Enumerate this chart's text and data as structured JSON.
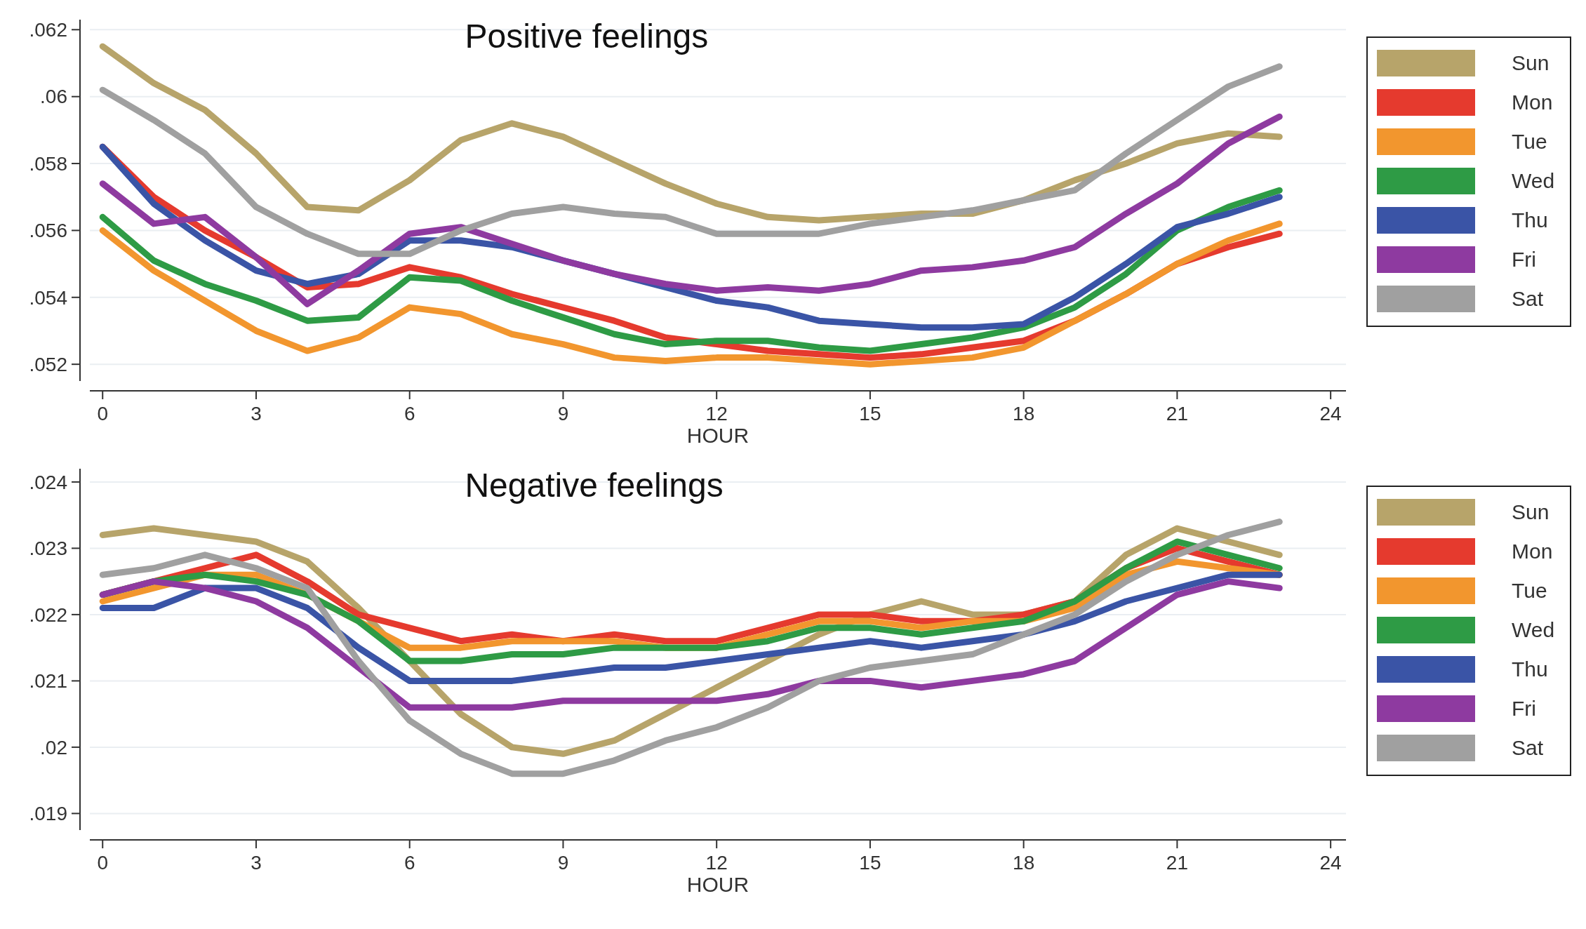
{
  "chart_data": [
    {
      "type": "line",
      "title": "Positive feelings",
      "xlabel": "HOUR",
      "x": [
        0,
        1,
        2,
        3,
        4,
        5,
        6,
        7,
        8,
        9,
        10,
        11,
        12,
        13,
        14,
        15,
        16,
        17,
        18,
        19,
        20,
        21,
        22,
        23
      ],
      "xlim": [
        -0.25,
        24.3
      ],
      "xticks": [
        0,
        3,
        6,
        9,
        12,
        15,
        18,
        21,
        24
      ],
      "ylim": [
        0.0515,
        0.0623
      ],
      "yticks": [
        {
          "value": 0.052,
          "label": ".052"
        },
        {
          "value": 0.054,
          "label": ".054"
        },
        {
          "value": 0.056,
          "label": ".056"
        },
        {
          "value": 0.058,
          "label": ".058"
        },
        {
          "value": 0.06,
          "label": ".06"
        },
        {
          "value": 0.062,
          "label": ".062"
        }
      ],
      "grid": "y",
      "legend": "right",
      "marker": "none",
      "line_style": "solid",
      "series": [
        {
          "name": "Sun",
          "color": "#b7a46a",
          "values": [
            0.0615,
            0.0604,
            0.0596,
            0.0583,
            0.0567,
            0.0566,
            0.0575,
            0.0587,
            0.0592,
            0.0588,
            0.0581,
            0.0574,
            0.0568,
            0.0564,
            0.0563,
            0.0564,
            0.0565,
            0.0565,
            0.0569,
            0.0575,
            0.058,
            0.0586,
            0.0589,
            0.0588
          ]
        },
        {
          "name": "Mon",
          "color": "#e53a2e",
          "values": [
            0.0585,
            0.057,
            0.056,
            0.0552,
            0.0543,
            0.0544,
            0.0549,
            0.0546,
            0.0541,
            0.0537,
            0.0533,
            0.0528,
            0.0526,
            0.0524,
            0.0523,
            0.0522,
            0.0523,
            0.0525,
            0.0527,
            0.0533,
            0.0541,
            0.055,
            0.0555,
            0.0559
          ]
        },
        {
          "name": "Tue",
          "color": "#f2962e",
          "values": [
            0.056,
            0.0548,
            0.0539,
            0.053,
            0.0524,
            0.0528,
            0.0537,
            0.0535,
            0.0529,
            0.0526,
            0.0522,
            0.0521,
            0.0522,
            0.0522,
            0.0521,
            0.052,
            0.0521,
            0.0522,
            0.0525,
            0.0533,
            0.0541,
            0.055,
            0.0557,
            0.0562
          ]
        },
        {
          "name": "Wed",
          "color": "#2e9b45",
          "values": [
            0.0564,
            0.0551,
            0.0544,
            0.0539,
            0.0533,
            0.0534,
            0.0546,
            0.0545,
            0.0539,
            0.0534,
            0.0529,
            0.0526,
            0.0527,
            0.0527,
            0.0525,
            0.0524,
            0.0526,
            0.0528,
            0.0531,
            0.0537,
            0.0547,
            0.056,
            0.0567,
            0.0572
          ]
        },
        {
          "name": "Thu",
          "color": "#3a54a6",
          "values": [
            0.0585,
            0.0568,
            0.0557,
            0.0548,
            0.0544,
            0.0547,
            0.0557,
            0.0557,
            0.0555,
            0.0551,
            0.0547,
            0.0543,
            0.0539,
            0.0537,
            0.0533,
            0.0532,
            0.0531,
            0.0531,
            0.0532,
            0.054,
            0.055,
            0.0561,
            0.0565,
            0.057
          ]
        },
        {
          "name": "Fri",
          "color": "#8e3aa0",
          "values": [
            0.0574,
            0.0562,
            0.0564,
            0.0552,
            0.0538,
            0.0548,
            0.0559,
            0.0561,
            0.0556,
            0.0551,
            0.0547,
            0.0544,
            0.0542,
            0.0543,
            0.0542,
            0.0544,
            0.0548,
            0.0549,
            0.0551,
            0.0555,
            0.0565,
            0.0574,
            0.0586,
            0.0594
          ]
        },
        {
          "name": "Sat",
          "color": "#a0a0a0",
          "values": [
            0.0602,
            0.0593,
            0.0583,
            0.0567,
            0.0559,
            0.0553,
            0.0553,
            0.056,
            0.0565,
            0.0567,
            0.0565,
            0.0564,
            0.0559,
            0.0559,
            0.0559,
            0.0562,
            0.0564,
            0.0566,
            0.0569,
            0.0572,
            0.0583,
            0.0593,
            0.0603,
            0.0609
          ]
        }
      ]
    },
    {
      "type": "line",
      "title": "Negative feelings",
      "xlabel": "HOUR",
      "x": [
        0,
        1,
        2,
        3,
        4,
        5,
        6,
        7,
        8,
        9,
        10,
        11,
        12,
        13,
        14,
        15,
        16,
        17,
        18,
        19,
        20,
        21,
        22,
        23
      ],
      "xlim": [
        -0.25,
        24.3
      ],
      "xticks": [
        0,
        3,
        6,
        9,
        12,
        15,
        18,
        21,
        24
      ],
      "ylim": [
        0.01875,
        0.0242
      ],
      "yticks": [
        {
          "value": 0.019,
          "label": ".019"
        },
        {
          "value": 0.02,
          "label": ".02"
        },
        {
          "value": 0.021,
          "label": ".021"
        },
        {
          "value": 0.022,
          "label": ".022"
        },
        {
          "value": 0.023,
          "label": ".023"
        },
        {
          "value": 0.024,
          "label": ".024"
        }
      ],
      "grid": "y",
      "legend": "right",
      "marker": "none",
      "line_style": "solid",
      "series": [
        {
          "name": "Sun",
          "color": "#b7a46a",
          "values": [
            0.0232,
            0.0233,
            0.0232,
            0.0231,
            0.0228,
            0.0221,
            0.0213,
            0.0205,
            0.02,
            0.0199,
            0.0201,
            0.0205,
            0.0209,
            0.0213,
            0.0217,
            0.022,
            0.0222,
            0.022,
            0.022,
            0.0222,
            0.0229,
            0.0233,
            0.0231,
            0.0229
          ]
        },
        {
          "name": "Mon",
          "color": "#e53a2e",
          "values": [
            0.0223,
            0.0225,
            0.0227,
            0.0229,
            0.0225,
            0.022,
            0.0218,
            0.0216,
            0.0217,
            0.0216,
            0.0217,
            0.0216,
            0.0216,
            0.0218,
            0.022,
            0.022,
            0.0219,
            0.0219,
            0.022,
            0.0222,
            0.0227,
            0.023,
            0.0228,
            0.0226
          ]
        },
        {
          "name": "Tue",
          "color": "#f2962e",
          "values": [
            0.0222,
            0.0224,
            0.0226,
            0.0226,
            0.0223,
            0.0219,
            0.0215,
            0.0215,
            0.0216,
            0.0216,
            0.0216,
            0.0215,
            0.0215,
            0.0217,
            0.0219,
            0.0219,
            0.0218,
            0.0219,
            0.0219,
            0.0221,
            0.0226,
            0.0228,
            0.0227,
            0.0226
          ]
        },
        {
          "name": "Wed",
          "color": "#2e9b45",
          "values": [
            0.0223,
            0.0225,
            0.0226,
            0.0225,
            0.0223,
            0.0219,
            0.0213,
            0.0213,
            0.0214,
            0.0214,
            0.0215,
            0.0215,
            0.0215,
            0.0216,
            0.0218,
            0.0218,
            0.0217,
            0.0218,
            0.0219,
            0.0222,
            0.0227,
            0.0231,
            0.0229,
            0.0227
          ]
        },
        {
          "name": "Thu",
          "color": "#3a54a6",
          "values": [
            0.0221,
            0.0221,
            0.0224,
            0.0224,
            0.0221,
            0.0215,
            0.021,
            0.021,
            0.021,
            0.0211,
            0.0212,
            0.0212,
            0.0213,
            0.0214,
            0.0215,
            0.0216,
            0.0215,
            0.0216,
            0.0217,
            0.0219,
            0.0222,
            0.0224,
            0.0226,
            0.0226
          ]
        },
        {
          "name": "Fri",
          "color": "#8e3aa0",
          "values": [
            0.0223,
            0.0225,
            0.0224,
            0.0222,
            0.0218,
            0.0212,
            0.0206,
            0.0206,
            0.0206,
            0.0207,
            0.0207,
            0.0207,
            0.0207,
            0.0208,
            0.021,
            0.021,
            0.0209,
            0.021,
            0.0211,
            0.0213,
            0.0218,
            0.0223,
            0.0225,
            0.0224
          ]
        },
        {
          "name": "Sat",
          "color": "#a0a0a0",
          "values": [
            0.0226,
            0.0227,
            0.0229,
            0.0227,
            0.0224,
            0.0213,
            0.0204,
            0.0199,
            0.0196,
            0.0196,
            0.0198,
            0.0201,
            0.0203,
            0.0206,
            0.021,
            0.0212,
            0.0213,
            0.0214,
            0.0217,
            0.022,
            0.0225,
            0.0229,
            0.0232,
            0.0234
          ]
        }
      ]
    }
  ]
}
